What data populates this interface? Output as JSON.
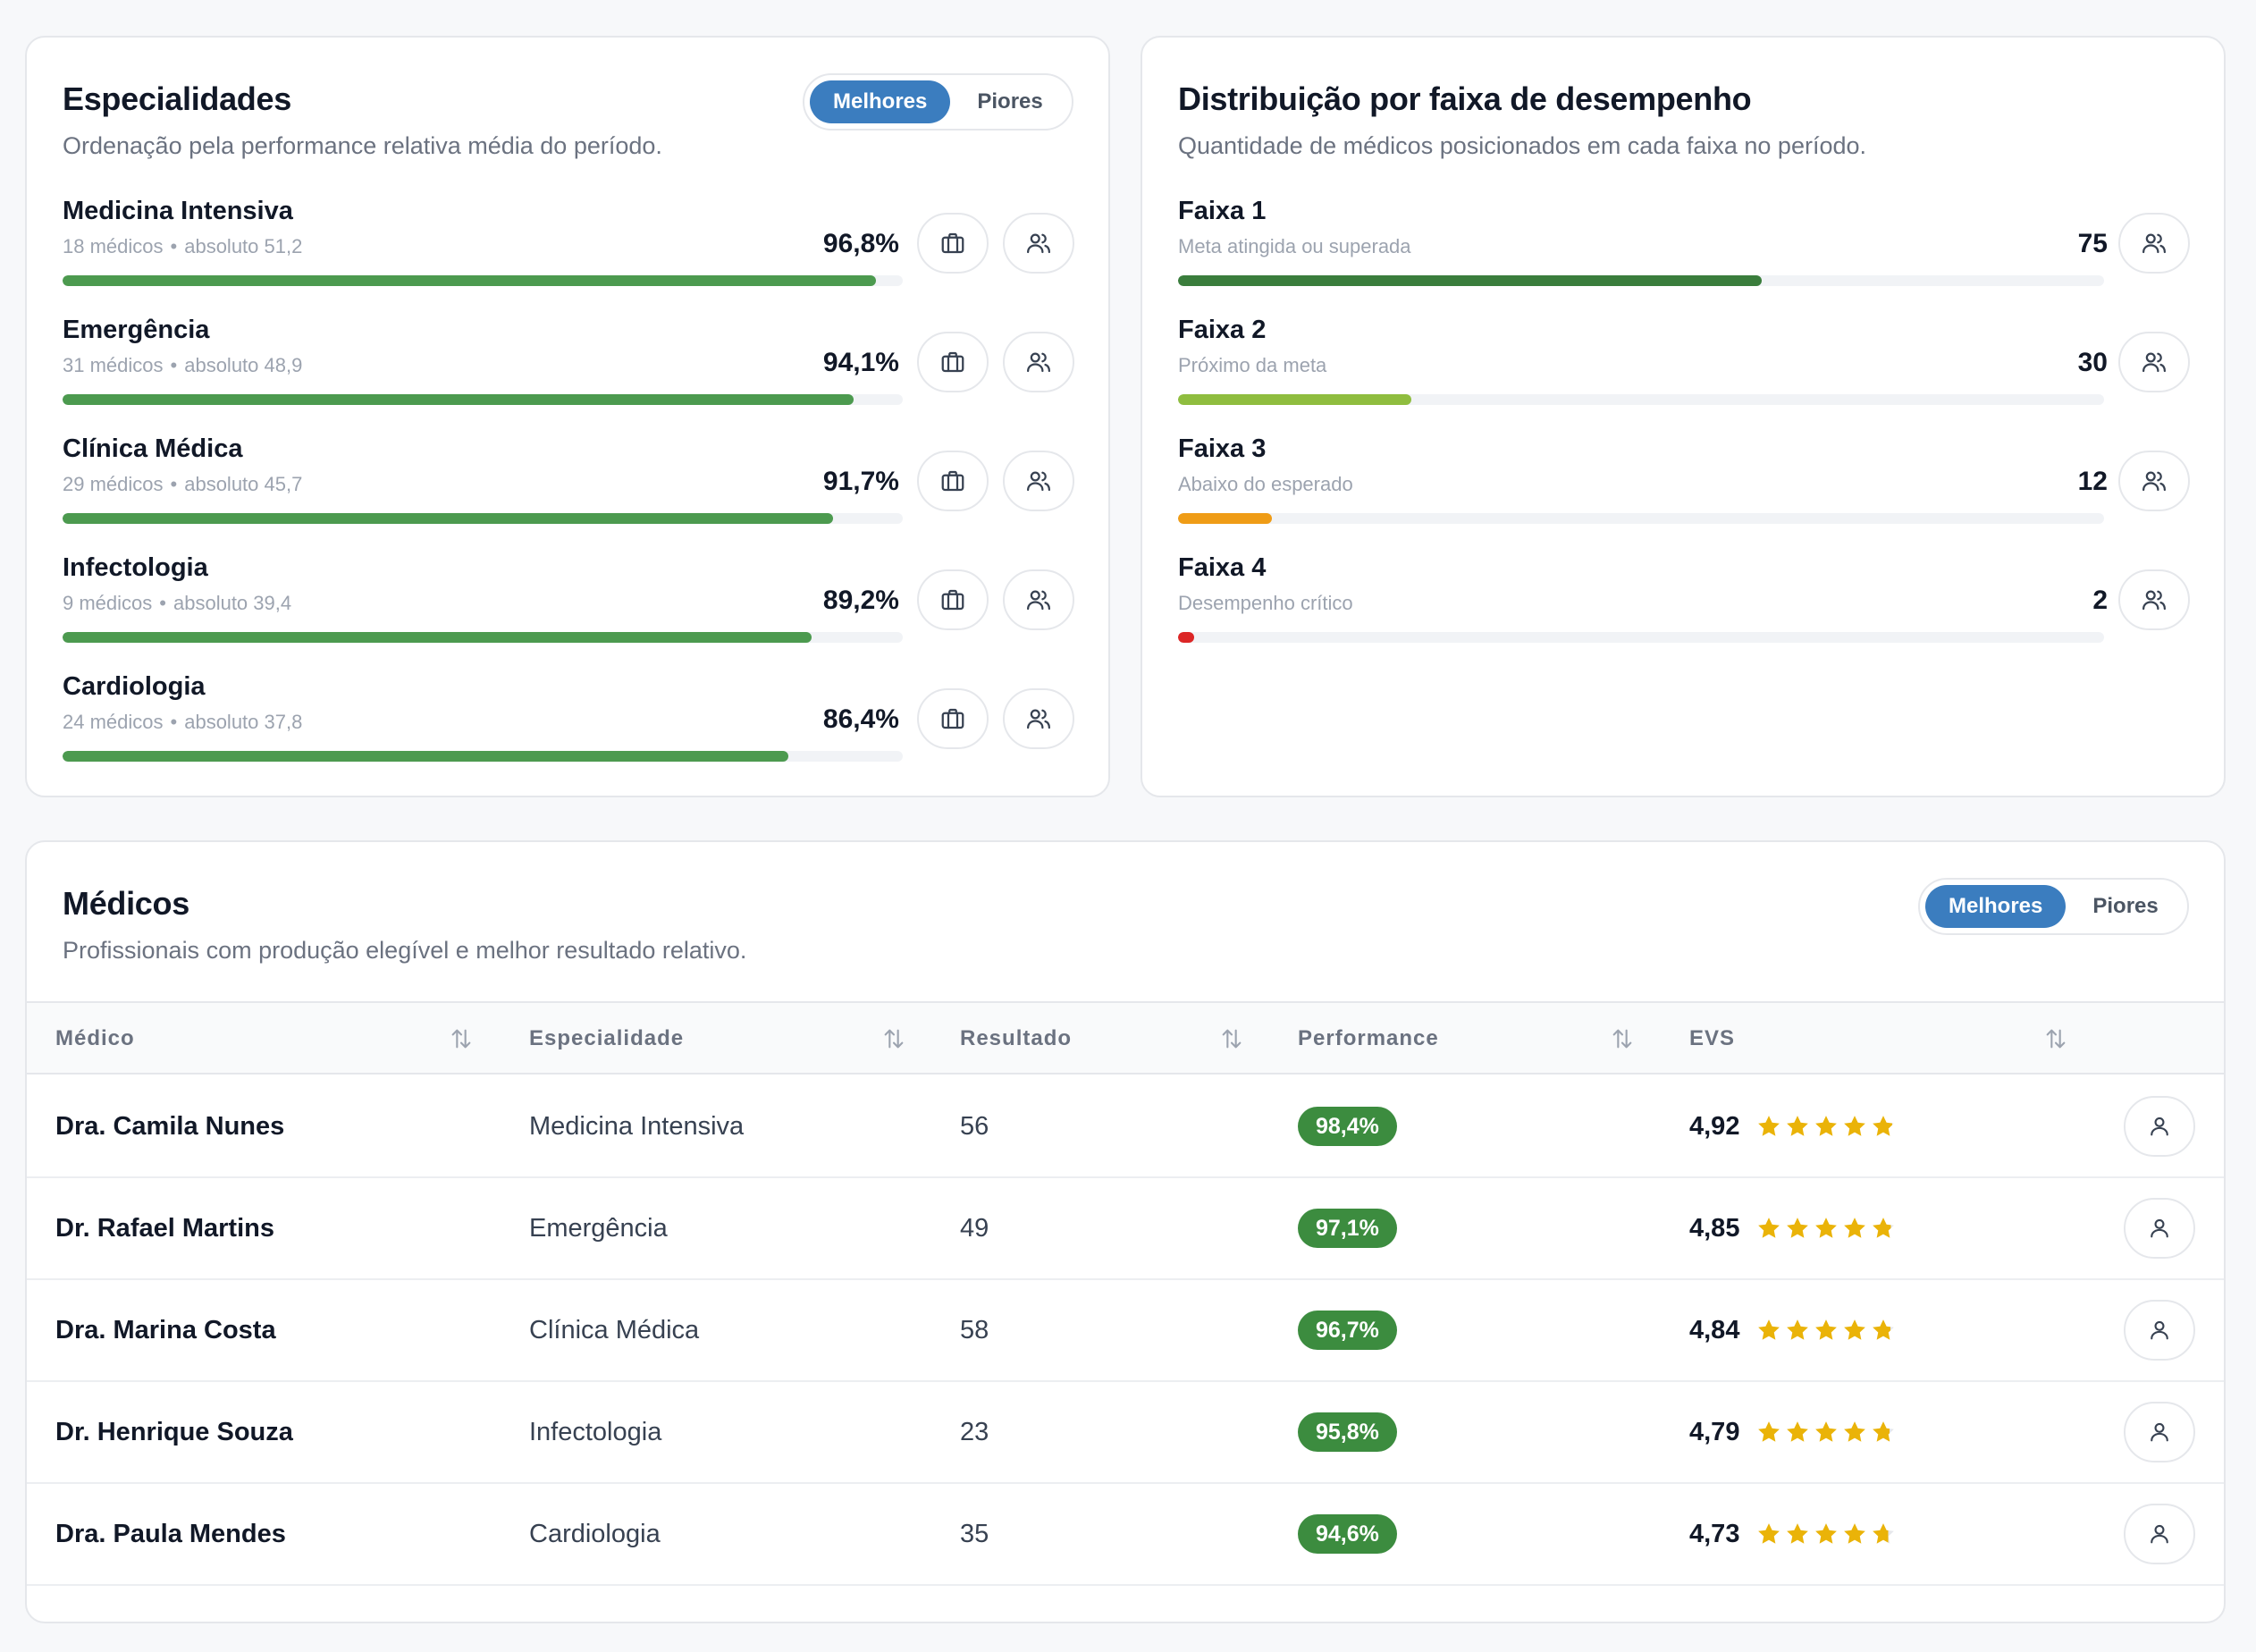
{
  "especialidades": {
    "title": "Especialidades",
    "subtitle": "Ordenação pela performance relativa média do período.",
    "toggle": {
      "best": "Melhores",
      "worst": "Piores",
      "active": "best"
    },
    "items": [
      {
        "name": "Medicina Intensiva",
        "doctors": "18 médicos",
        "absolute": "absoluto 51,2",
        "value": "96,8%",
        "fill": 0.968
      },
      {
        "name": "Emergência",
        "doctors": "31 médicos",
        "absolute": "absoluto 48,9",
        "value": "94,1%",
        "fill": 0.941
      },
      {
        "name": "Clínica Médica",
        "doctors": "29 médicos",
        "absolute": "absoluto 45,7",
        "value": "91,7%",
        "fill": 0.917
      },
      {
        "name": "Infectologia",
        "doctors": "9 médicos",
        "absolute": "absoluto 39,4",
        "value": "89,2%",
        "fill": 0.892
      },
      {
        "name": "Cardiologia",
        "doctors": "24 médicos",
        "absolute": "absoluto 37,8",
        "value": "86,4%",
        "fill": 0.864
      }
    ],
    "separator": "•",
    "bar_color": "#4c9a4f",
    "icons": {
      "briefcase": "briefcase-icon",
      "users": "users-icon"
    }
  },
  "distribuicao": {
    "title": "Distribuição por faixa de desempenho",
    "subtitle": "Quantidade de médicos posicionados em cada faixa no período.",
    "items": [
      {
        "name": "Faixa 1",
        "desc": "Meta atingida ou superada",
        "count": "75",
        "fill": 0.63,
        "color": "#3a7d3c"
      },
      {
        "name": "Faixa 2",
        "desc": "Próximo da meta",
        "count": "30",
        "fill": 0.252,
        "color": "#8fbd3f"
      },
      {
        "name": "Faixa 3",
        "desc": "Abaixo do esperado",
        "count": "12",
        "fill": 0.101,
        "color": "#ef9c16"
      },
      {
        "name": "Faixa 4",
        "desc": "Desempenho crítico",
        "count": "2",
        "fill": 0.017,
        "color": "#dc2626"
      }
    ]
  },
  "medicos": {
    "title": "Médicos",
    "subtitle": "Profissionais com produção elegível e melhor resultado relativo.",
    "toggle": {
      "best": "Melhores",
      "worst": "Piores",
      "active": "best"
    },
    "columns": [
      "Médico",
      "Especialidade",
      "Resultado",
      "Performance",
      "EVS"
    ],
    "rows": [
      {
        "name": "Dra. Camila Nunes",
        "specialty": "Medicina Intensiva",
        "result": "56",
        "performance": "98,4%",
        "evs": "4,92",
        "rating": 4.92
      },
      {
        "name": "Dr. Rafael Martins",
        "specialty": "Emergência",
        "result": "49",
        "performance": "97,1%",
        "evs": "4,85",
        "rating": 4.85
      },
      {
        "name": "Dra. Marina Costa",
        "specialty": "Clínica Médica",
        "result": "58",
        "performance": "96,7%",
        "evs": "4,84",
        "rating": 4.84
      },
      {
        "name": "Dr. Henrique Souza",
        "specialty": "Infectologia",
        "result": "23",
        "performance": "95,8%",
        "evs": "4,79",
        "rating": 4.79
      },
      {
        "name": "Dra. Paula Mendes",
        "specialty": "Cardiologia",
        "result": "35",
        "performance": "94,6%",
        "evs": "4,73",
        "rating": 4.73
      }
    ],
    "pill_color": "#3c8c3f",
    "star_color": "#eab308"
  }
}
